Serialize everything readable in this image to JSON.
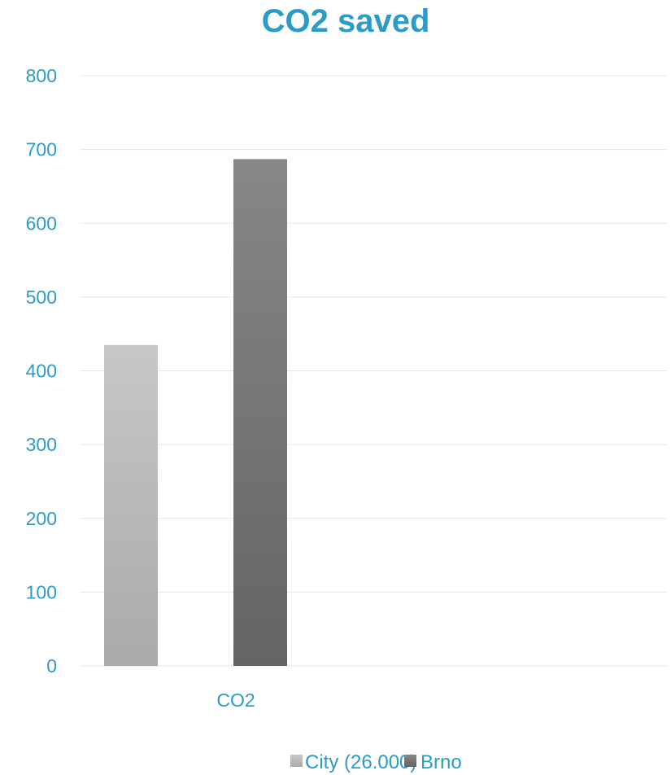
{
  "chart_data": {
    "type": "bar",
    "title": "CO2 saved",
    "categories": [
      "CO2"
    ],
    "series": [
      {
        "name": "City (26.000)",
        "values": [
          435
        ],
        "color": "#b8b8b8"
      },
      {
        "name": "Brno",
        "values": [
          687
        ],
        "color": "#7a7a7a"
      }
    ],
    "ylim": [
      0,
      800
    ],
    "yticks": [
      0,
      100,
      200,
      300,
      400,
      500,
      600,
      700,
      800
    ],
    "grid": true,
    "legend_position": "bottom"
  },
  "colors": {
    "title": "#2b9cc7",
    "axis_text": "#2b9cc7",
    "grid": "#d9ecf5",
    "background": "#ffffff"
  }
}
